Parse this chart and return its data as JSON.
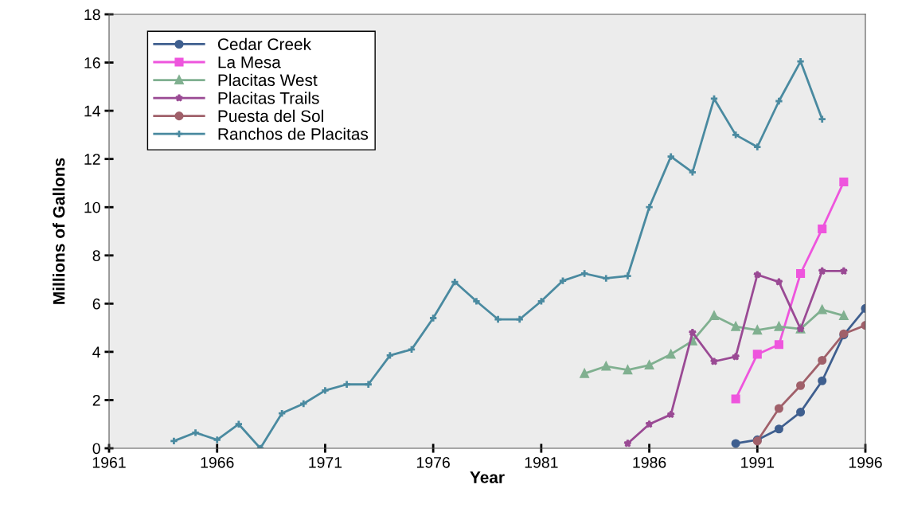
{
  "chart_data": {
    "type": "line",
    "xlabel": "Year",
    "ylabel": "Millions of Gallons",
    "xlim": [
      1961,
      1996
    ],
    "xticks": [
      1961,
      1966,
      1971,
      1976,
      1981,
      1986,
      1991,
      1996
    ],
    "ylim": [
      0,
      18
    ],
    "yticks": [
      0,
      2,
      4,
      6,
      8,
      10,
      12,
      14,
      16,
      18
    ],
    "grid": false,
    "legend": "top left",
    "line_style": "solid",
    "series": [
      {
        "name": "Cedar Creek",
        "color": "#3f5f8f",
        "marker": "circle",
        "x": [
          1990,
          1991,
          1992,
          1993,
          1994,
          1995,
          1996
        ],
        "values": [
          0.2,
          0.35,
          0.8,
          1.5,
          2.8,
          4.7,
          5.8
        ]
      },
      {
        "name": "La Mesa",
        "color": "#ee55dd",
        "marker": "square",
        "x": [
          1990,
          1991,
          1992,
          1993,
          1994,
          1995
        ],
        "values": [
          2.05,
          3.9,
          4.3,
          7.25,
          9.1,
          11.05
        ]
      },
      {
        "name": "Placitas West",
        "color": "#80b090",
        "marker": "triangle",
        "x": [
          1983,
          1984,
          1985,
          1986,
          1987,
          1988,
          1989,
          1990,
          1991,
          1992,
          1993,
          1994,
          1995
        ],
        "values": [
          3.1,
          3.4,
          3.25,
          3.45,
          3.9,
          4.45,
          5.5,
          5.05,
          4.9,
          5.05,
          4.95,
          5.75,
          5.5
        ]
      },
      {
        "name": "Placitas Trails",
        "color": "#9a4a94",
        "marker": "star",
        "x": [
          1985,
          1986,
          1987,
          1988,
          1989,
          1990,
          1991,
          1992,
          1993,
          1994,
          1995
        ],
        "values": [
          0.2,
          1.0,
          1.4,
          4.8,
          3.6,
          3.8,
          7.2,
          6.9,
          4.95,
          7.35,
          7.35
        ]
      },
      {
        "name": "Puesta del Sol",
        "color": "#a0606a",
        "marker": "circle",
        "x": [
          1991,
          1992,
          1993,
          1994,
          1995,
          1996
        ],
        "values": [
          0.3,
          1.65,
          2.6,
          3.65,
          4.75,
          5.1
        ]
      },
      {
        "name": "Ranchos de Placitas",
        "color": "#4a8aa0",
        "marker": "cross",
        "x": [
          1964,
          1965,
          1966,
          1967,
          1968,
          1969,
          1970,
          1971,
          1972,
          1973,
          1974,
          1975,
          1976,
          1977,
          1978,
          1979,
          1980,
          1981,
          1982,
          1983,
          1984,
          1985,
          1986,
          1987,
          1988,
          1989,
          1990,
          1991,
          1992,
          1993,
          1994
        ],
        "values": [
          0.3,
          0.65,
          0.35,
          1.0,
          0,
          1.45,
          1.85,
          2.4,
          2.65,
          2.65,
          3.85,
          4.1,
          5.4,
          6.9,
          6.1,
          5.35,
          5.35,
          6.1,
          6.95,
          7.25,
          7.05,
          7.15,
          10.0,
          12.1,
          11.45,
          14.5,
          13.0,
          12.5,
          14.4,
          16.05,
          13.65
        ]
      }
    ]
  }
}
